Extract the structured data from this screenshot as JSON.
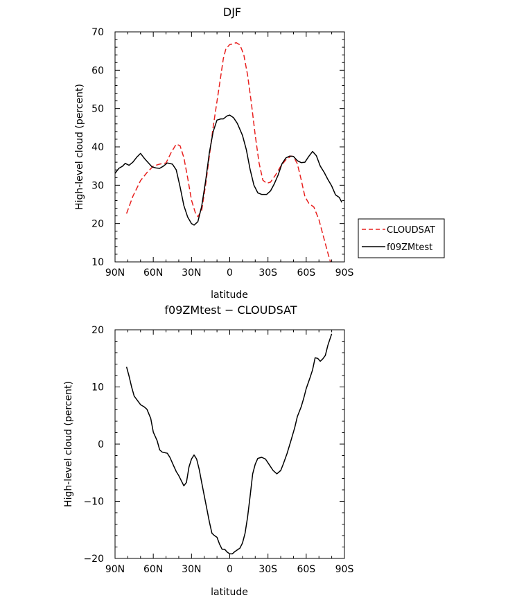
{
  "chart_data": [
    {
      "type": "line",
      "title": "DJF",
      "xlabel": "latitude",
      "ylabel": "High-level cloud (percent)",
      "xlim": [
        90,
        -90
      ],
      "ylim": [
        10,
        70
      ],
      "x_ticks": [
        90,
        60,
        30,
        0,
        -30,
        -60,
        -90
      ],
      "x_tick_labels": [
        "90N",
        "60N",
        "30N",
        "0",
        "30S",
        "60S",
        "90S"
      ],
      "y_ticks": [
        10,
        20,
        30,
        40,
        50,
        60,
        70
      ],
      "y_tick_labels": [
        "10",
        "20",
        "30",
        "40",
        "50",
        "60",
        "70"
      ],
      "legend_position": "right",
      "grid": false,
      "series": [
        {
          "name": "CLOUDSAT",
          "color": "#e8201e",
          "dash": "dashed",
          "points": [
            [
              81,
              22.6
            ],
            [
              76,
              27.1
            ],
            [
              70,
              31.2
            ],
            [
              65,
              33.3
            ],
            [
              60,
              35.0
            ],
            [
              55,
              35.5
            ],
            [
              50,
              35.8
            ],
            [
              46,
              38.5
            ],
            [
              42,
              40.7
            ],
            [
              39,
              40.3
            ],
            [
              36,
              37.2
            ],
            [
              33,
              31.9
            ],
            [
              30,
              26.1
            ],
            [
              27,
              22.8
            ],
            [
              25,
              21.8
            ],
            [
              22,
              23.4
            ],
            [
              19,
              30.0
            ],
            [
              16,
              37.6
            ],
            [
              13,
              45.2
            ],
            [
              10,
              51.9
            ],
            [
              7,
              58.5
            ],
            [
              5,
              63.1
            ],
            [
              3,
              65.6
            ],
            [
              0,
              66.7
            ],
            [
              -3,
              66.9
            ],
            [
              -5,
              67.2
            ],
            [
              -8,
              66.6
            ],
            [
              -11,
              64.1
            ],
            [
              -14,
              58.8
            ],
            [
              -17,
              51.3
            ],
            [
              -20,
              43.0
            ],
            [
              -23,
              35.8
            ],
            [
              -26,
              31.3
            ],
            [
              -29,
              30.5
            ],
            [
              -32,
              30.8
            ],
            [
              -36,
              32.7
            ],
            [
              -40,
              35.0
            ],
            [
              -44,
              36.6
            ],
            [
              -48,
              37.6
            ],
            [
              -50,
              37.5
            ],
            [
              -53,
              35.6
            ],
            [
              -56,
              31.5
            ],
            [
              -59,
              27.0
            ],
            [
              -62,
              25.3
            ],
            [
              -66,
              24.3
            ],
            [
              -70,
              21.0
            ],
            [
              -74,
              16.0
            ],
            [
              -77,
              12.3
            ],
            [
              -79,
              10.0
            ]
          ]
        },
        {
          "name": "f09ZMtest",
          "color": "#000000",
          "dash": "solid",
          "points": [
            [
              90,
              33.1
            ],
            [
              87,
              34.4
            ],
            [
              84,
              35.0
            ],
            [
              82,
              35.7
            ],
            [
              79,
              35.2
            ],
            [
              76,
              36.0
            ],
            [
              73,
              37.3
            ],
            [
              70,
              38.3
            ],
            [
              67,
              37.0
            ],
            [
              64,
              35.9
            ],
            [
              61,
              34.8
            ],
            [
              58,
              34.5
            ],
            [
              55,
              34.4
            ],
            [
              52,
              35.0
            ],
            [
              49,
              35.8
            ],
            [
              45,
              35.5
            ],
            [
              42,
              34.0
            ],
            [
              39,
              29.6
            ],
            [
              36,
              24.7
            ],
            [
              33,
              21.7
            ],
            [
              30,
              20.0
            ],
            [
              28,
              19.6
            ],
            [
              25,
              20.5
            ],
            [
              22,
              24.5
            ],
            [
              19,
              31.0
            ],
            [
              16,
              38.5
            ],
            [
              13,
              44.0
            ],
            [
              10,
              47.0
            ],
            [
              7,
              47.3
            ],
            [
              5,
              47.3
            ],
            [
              2,
              48.1
            ],
            [
              0,
              48.3
            ],
            [
              -3,
              47.6
            ],
            [
              -6,
              46.1
            ],
            [
              -10,
              43.0
            ],
            [
              -13,
              39.3
            ],
            [
              -16,
              34.1
            ],
            [
              -19,
              30.0
            ],
            [
              -22,
              28.0
            ],
            [
              -25,
              27.6
            ],
            [
              -29,
              27.6
            ],
            [
              -32,
              28.5
            ],
            [
              -35,
              30.4
            ],
            [
              -38,
              32.7
            ],
            [
              -41,
              35.6
            ],
            [
              -44,
              37.1
            ],
            [
              -47,
              37.6
            ],
            [
              -50,
              37.5
            ],
            [
              -53,
              36.4
            ],
            [
              -56,
              35.9
            ],
            [
              -59,
              36.0
            ],
            [
              -62,
              37.5
            ],
            [
              -65,
              38.8
            ],
            [
              -68,
              37.7
            ],
            [
              -71,
              35.0
            ],
            [
              -74,
              33.4
            ],
            [
              -77,
              31.5
            ],
            [
              -80,
              29.8
            ],
            [
              -83,
              27.5
            ],
            [
              -86,
              26.8
            ],
            [
              -88,
              25.5
            ]
          ]
        }
      ]
    },
    {
      "type": "line",
      "title": "f09ZMtest − CLOUDSAT",
      "xlabel": "latitude",
      "ylabel": "High-level cloud (percent)",
      "xlim": [
        90,
        -90
      ],
      "ylim": [
        -20,
        20
      ],
      "x_ticks": [
        90,
        60,
        30,
        0,
        -30,
        -60,
        -90
      ],
      "x_tick_labels": [
        "90N",
        "60N",
        "30N",
        "0",
        "30S",
        "60S",
        "90S"
      ],
      "y_ticks": [
        -20,
        -10,
        0,
        10,
        20
      ],
      "y_tick_labels": [
        "−20",
        "−10",
        "0",
        "10",
        "20"
      ],
      "grid": false,
      "series": [
        {
          "color": "#000000",
          "dash": "solid",
          "points": [
            [
              81,
              13.5
            ],
            [
              79,
              11.9
            ],
            [
              77,
              10.0
            ],
            [
              75,
              8.4
            ],
            [
              72,
              7.5
            ],
            [
              70,
              6.9
            ],
            [
              67,
              6.5
            ],
            [
              65,
              6.1
            ],
            [
              62,
              4.5
            ],
            [
              60,
              2.1
            ],
            [
              57,
              0.6
            ],
            [
              55,
              -1.0
            ],
            [
              53,
              -1.4
            ],
            [
              49,
              -1.6
            ],
            [
              47,
              -2.3
            ],
            [
              44,
              -3.8
            ],
            [
              42,
              -4.8
            ],
            [
              40,
              -5.5
            ],
            [
              38,
              -6.4
            ],
            [
              36,
              -7.3
            ],
            [
              34,
              -6.7
            ],
            [
              32,
              -4.0
            ],
            [
              30,
              -2.6
            ],
            [
              28,
              -1.9
            ],
            [
              26,
              -2.6
            ],
            [
              24,
              -4.4
            ],
            [
              22,
              -6.7
            ],
            [
              20,
              -9.0
            ],
            [
              18,
              -11.3
            ],
            [
              16,
              -13.6
            ],
            [
              14,
              -15.6
            ],
            [
              12,
              -16.0
            ],
            [
              10,
              -16.3
            ],
            [
              8,
              -17.5
            ],
            [
              6,
              -18.4
            ],
            [
              4,
              -18.4
            ],
            [
              2,
              -18.9
            ],
            [
              0,
              -19.2
            ],
            [
              -2,
              -19.2
            ],
            [
              -4,
              -18.8
            ],
            [
              -6,
              -18.5
            ],
            [
              -8,
              -18.2
            ],
            [
              -10,
              -17.3
            ],
            [
              -12,
              -15.6
            ],
            [
              -14,
              -12.8
            ],
            [
              -16,
              -9.1
            ],
            [
              -18,
              -5.2
            ],
            [
              -20,
              -3.5
            ],
            [
              -22,
              -2.5
            ],
            [
              -25,
              -2.3
            ],
            [
              -28,
              -2.6
            ],
            [
              -31,
              -3.6
            ],
            [
              -34,
              -4.6
            ],
            [
              -37,
              -5.2
            ],
            [
              -40,
              -4.6
            ],
            [
              -42,
              -3.5
            ],
            [
              -45,
              -1.6
            ],
            [
              -48,
              0.6
            ],
            [
              -51,
              2.9
            ],
            [
              -53,
              4.8
            ],
            [
              -56,
              6.5
            ],
            [
              -58,
              8.0
            ],
            [
              -60,
              9.7
            ],
            [
              -63,
              11.6
            ],
            [
              -65,
              13.0
            ],
            [
              -67,
              15.1
            ],
            [
              -69,
              15.0
            ],
            [
              -71,
              14.5
            ],
            [
              -73,
              14.9
            ],
            [
              -75,
              15.5
            ],
            [
              -77,
              17.3
            ],
            [
              -80,
              19.3
            ]
          ]
        }
      ]
    }
  ]
}
